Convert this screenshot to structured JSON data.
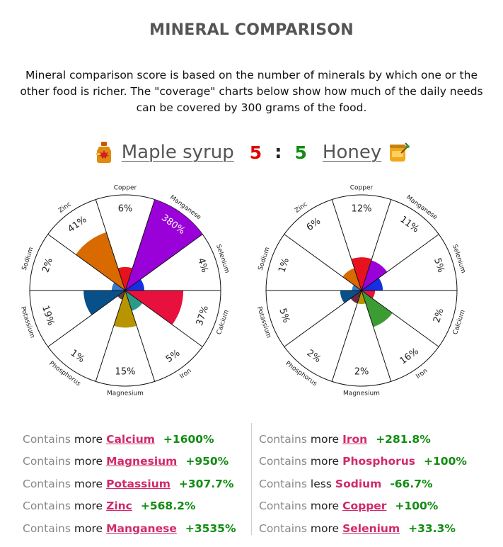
{
  "title": "MINERAL COMPARISON",
  "description": "Mineral comparison score is based on the number of minerals by which one or the other food is richer. The \"coverage\" charts below show how much of the daily needs can be covered by 300 grams of the food.",
  "comparison": {
    "left_food": "Maple syrup",
    "left_score": "5",
    "separator": ":",
    "right_score": "5",
    "right_food": "Honey",
    "left_icon": "maple-syrup-bottle-icon",
    "right_icon": "honey-jar-icon",
    "left_color": "#e00000",
    "right_color": "#118c11"
  },
  "chart_data": [
    {
      "type": "polar-area",
      "title": "Maple syrup",
      "categories": [
        "Copper",
        "Manganese",
        "Selenium",
        "Calcium",
        "Iron",
        "Magnesium",
        "Phosphorus",
        "Potassium",
        "Sodium",
        "Zinc"
      ],
      "labels": [
        "6%",
        "380%",
        "4%",
        "37%",
        "5%",
        "15%",
        "1%",
        "19%",
        "2%",
        "41%"
      ],
      "values": [
        6,
        380,
        4,
        37,
        5,
        15,
        1,
        19,
        2,
        41
      ],
      "colors": [
        "#e8121e",
        "#9a00d8",
        "#1430e0",
        "#e8103c",
        "#2a9a8a",
        "#b89400",
        "#604040",
        "#08508a",
        "#3a7acb",
        "#d86a00"
      ]
    },
    {
      "type": "polar-area",
      "title": "Honey",
      "categories": [
        "Copper",
        "Manganese",
        "Selenium",
        "Calcium",
        "Iron",
        "Magnesium",
        "Phosphorus",
        "Potassium",
        "Sodium",
        "Zinc"
      ],
      "labels": [
        "12%",
        "11%",
        "5%",
        "2%",
        "16%",
        "2%",
        "2%",
        "5%",
        "1%",
        "6%"
      ],
      "values": [
        12,
        11,
        5,
        2,
        16,
        2,
        2,
        5,
        1,
        6
      ],
      "colors": [
        "#e8121e",
        "#9a00d8",
        "#1430e0",
        "#e8103c",
        "#3c9c34",
        "#b89400",
        "#6a2a40",
        "#08508a",
        "#3a7acb",
        "#d86a00"
      ]
    }
  ],
  "left_list": [
    {
      "prefix": "Contains",
      "word": "more",
      "mineral": "Calcium",
      "diff": "+1600%",
      "link": true
    },
    {
      "prefix": "Contains",
      "word": "more",
      "mineral": "Magnesium",
      "diff": "+950%",
      "link": true
    },
    {
      "prefix": "Contains",
      "word": "more",
      "mineral": "Potassium",
      "diff": "+307.7%",
      "link": true
    },
    {
      "prefix": "Contains",
      "word": "more",
      "mineral": "Zinc",
      "diff": "+568.2%",
      "link": true
    },
    {
      "prefix": "Contains",
      "word": "more",
      "mineral": "Manganese",
      "diff": "+3535%",
      "link": true
    }
  ],
  "right_list": [
    {
      "prefix": "Contains",
      "word": "more",
      "mineral": "Iron",
      "diff": "+281.8%",
      "link": true
    },
    {
      "prefix": "Contains",
      "word": "more",
      "mineral": "Phosphorus",
      "diff": "+100%",
      "link": false
    },
    {
      "prefix": "Contains",
      "word": "less",
      "mineral": "Sodium",
      "diff": "-66.7%",
      "link": false
    },
    {
      "prefix": "Contains",
      "word": "more",
      "mineral": "Copper",
      "diff": "+100%",
      "link": true
    },
    {
      "prefix": "Contains",
      "word": "more",
      "mineral": "Selenium",
      "diff": "+33.3%",
      "link": true
    }
  ]
}
